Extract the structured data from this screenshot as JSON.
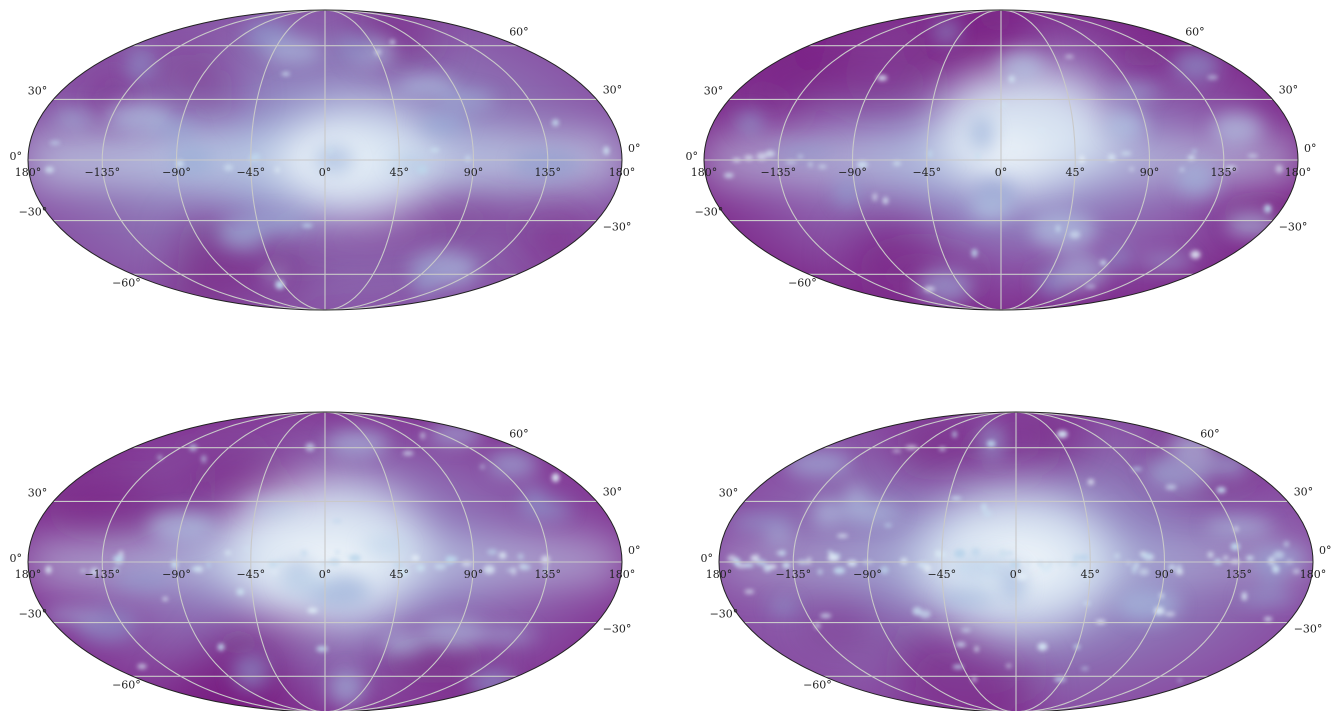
{
  "figure": {
    "projection": "mollweide",
    "colormap": [
      "#f4f8fb",
      "#b9d3ea",
      "#8fa6d4",
      "#8c6bb1",
      "#88419d",
      "#6e016b"
    ],
    "graticule_color": "#c9c9c9",
    "outline_color": "#222222",
    "lon_ticks": [
      {
        "value": -180,
        "label": "180°"
      },
      {
        "value": -135,
        "label": "−135°"
      },
      {
        "value": -90,
        "label": "−90°"
      },
      {
        "value": -45,
        "label": "−45°"
      },
      {
        "value": 0,
        "label": "0°"
      },
      {
        "value": 45,
        "label": "45°"
      },
      {
        "value": 90,
        "label": "90°"
      },
      {
        "value": 135,
        "label": "135°"
      },
      {
        "value": 180,
        "label": "180°"
      }
    ],
    "lat_ticks": [
      {
        "value": 60,
        "label": "60°"
      },
      {
        "value": 30,
        "label": "30°"
      },
      {
        "value": 0,
        "label": "0°"
      },
      {
        "value": -30,
        "label": "−30°"
      },
      {
        "value": -60,
        "label": "−60°"
      }
    ],
    "panels": [
      {
        "name": "map-panel-top-left",
        "plane_width": 0.3,
        "bulge_lon": 40,
        "bulge_lat": 0,
        "bulge_size": 1.0,
        "edge_dark": 0.55,
        "knots": 18,
        "seed": 11
      },
      {
        "name": "map-panel-top-right",
        "plane_width": 0.22,
        "bulge_lon": 30,
        "bulge_lat": 15,
        "bulge_size": 1.1,
        "edge_dark": 0.8,
        "knots": 40,
        "seed": 23
      },
      {
        "name": "map-panel-bottom-left",
        "plane_width": 0.2,
        "bulge_lon": 0,
        "bulge_lat": 5,
        "bulge_size": 1.3,
        "edge_dark": 0.75,
        "knots": 55,
        "seed": 37
      },
      {
        "name": "map-panel-bottom-right",
        "plane_width": 0.12,
        "bulge_lon": 0,
        "bulge_lat": 0,
        "bulge_size": 1.25,
        "edge_dark": 0.6,
        "knots": 110,
        "seed": 51
      }
    ]
  }
}
